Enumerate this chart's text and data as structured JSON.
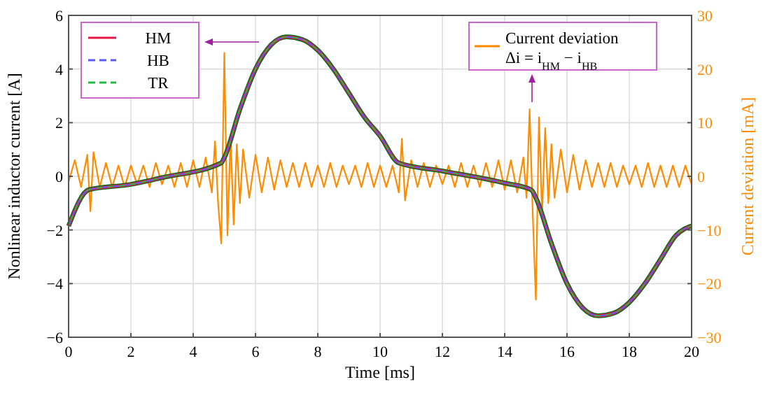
{
  "chart_data": {
    "type": "line",
    "xlabel": "Time [ms]",
    "ylabel": "Nonlinear inductor current [A]",
    "y2label": "Current deviation [mA]",
    "xlim": [
      0,
      20
    ],
    "xticks": [
      0,
      2,
      4,
      6,
      8,
      10,
      12,
      14,
      16,
      18,
      20
    ],
    "ylim": [
      -6,
      6
    ],
    "yticks": [
      -6,
      -4,
      -2,
      0,
      2,
      4,
      6
    ],
    "y2lim": [
      -30,
      30
    ],
    "y2ticks": [
      -30,
      -20,
      -10,
      0,
      10,
      20,
      30
    ],
    "grid": true,
    "legend": "top left",
    "series": [
      {
        "name": "HM",
        "color": "#e8174a",
        "line_style": "solid",
        "x": [
          0,
          0.65,
          2,
          3,
          4.9,
          5,
          5.5,
          6,
          6.5,
          7,
          7.5,
          8,
          8.5,
          9,
          9.5,
          10,
          10.6,
          12,
          14,
          14.85,
          15,
          15.5,
          16,
          16.5,
          17,
          17.5,
          18,
          18.5,
          19,
          19.5,
          20
        ],
        "values": [
          -1.85,
          -0.5,
          -0.3,
          -0.05,
          0.5,
          0.7,
          2.5,
          4,
          4.9,
          5.2,
          5.1,
          4.7,
          4,
          3.1,
          2.2,
          1.5,
          0.5,
          0.2,
          -0.25,
          -0.5,
          -0.8,
          -2.5,
          -4,
          -4.9,
          -5.2,
          -5.1,
          -4.7,
          -4,
          -3.1,
          -2.2,
          -1.85
        ]
      },
      {
        "color": "#0a6b1f",
        "line_style": "solid",
        "x": [
          0,
          0.65,
          2,
          3,
          4.9,
          5,
          5.5,
          6,
          6.5,
          7,
          7.5,
          8,
          8.5,
          9,
          9.5,
          10,
          10.6,
          12,
          14,
          14.85,
          15,
          15.5,
          16,
          16.5,
          17,
          17.5,
          18,
          18.5,
          19,
          19.5,
          20
        ],
        "values": [
          -1.85,
          -0.5,
          -0.3,
          -0.05,
          0.5,
          0.7,
          2.5,
          4,
          4.9,
          5.2,
          5.1,
          4.7,
          4,
          3.1,
          2.2,
          1.5,
          0.5,
          0.2,
          -0.25,
          -0.5,
          -0.8,
          -2.5,
          -4,
          -4.9,
          -5.2,
          -5.1,
          -4.7,
          -4,
          -3.1,
          -2.2,
          -1.85
        ]
      },
      {
        "name": "HB",
        "color": "#5b5bff",
        "line_style": "dashed",
        "x": [
          0,
          0.65,
          2,
          3,
          4.9,
          5,
          5.5,
          6,
          6.5,
          7,
          7.5,
          8,
          8.5,
          9,
          9.5,
          10,
          10.6,
          12,
          14,
          14.85,
          15,
          15.5,
          16,
          16.5,
          17,
          17.5,
          18,
          18.5,
          19,
          19.5,
          20
        ],
        "values": [
          -1.85,
          -0.5,
          -0.3,
          -0.05,
          0.5,
          0.7,
          2.5,
          4,
          4.9,
          5.2,
          5.1,
          4.7,
          4,
          3.1,
          2.2,
          1.5,
          0.5,
          0.2,
          -0.25,
          -0.5,
          -0.8,
          -2.5,
          -4,
          -4.9,
          -5.2,
          -5.1,
          -4.7,
          -4,
          -3.1,
          -2.2,
          -1.85
        ]
      },
      {
        "name": "TR",
        "color": "#22bb44",
        "line_style": "dashed",
        "x": [
          0,
          0.65,
          2,
          3,
          4.9,
          5,
          5.5,
          6,
          6.5,
          7,
          7.5,
          8,
          8.5,
          9,
          9.5,
          10,
          10.6,
          12,
          14,
          14.85,
          15,
          15.5,
          16,
          16.5,
          17,
          17.5,
          18,
          18.5,
          19,
          19.5,
          20
        ],
        "values": [
          -1.85,
          -0.5,
          -0.3,
          -0.05,
          0.5,
          0.7,
          2.5,
          4,
          4.9,
          5.2,
          5.1,
          4.7,
          4,
          3.1,
          2.2,
          1.5,
          0.5,
          0.2,
          -0.25,
          -0.5,
          -0.8,
          -2.5,
          -4,
          -4.9,
          -5.2,
          -5.1,
          -4.7,
          -4,
          -3.1,
          -2.2,
          -1.85
        ]
      },
      {
        "name": "Current deviation\nΔi = i$_{HM}$ − i$_{HB}$",
        "color": "#ff8c00",
        "line_style": "solid",
        "axis": "y2",
        "x": [
          0,
          0.2,
          0.4,
          0.6,
          0.7,
          0.8,
          1,
          1.2,
          1.4,
          1.6,
          1.8,
          2,
          2.2,
          2.4,
          2.6,
          2.8,
          3,
          3.2,
          3.4,
          3.6,
          3.8,
          4,
          4.2,
          4.4,
          4.6,
          4.7,
          4.8,
          4.9,
          5,
          5.1,
          5.2,
          5.3,
          5.4,
          5.5,
          5.6,
          5.8,
          6,
          6.2,
          6.4,
          6.6,
          6.8,
          7,
          7.2,
          7.4,
          7.6,
          7.8,
          8,
          8.2,
          8.4,
          8.6,
          8.8,
          9,
          9.2,
          9.4,
          9.6,
          9.8,
          10,
          10.2,
          10.4,
          10.6,
          10.7,
          10.8,
          11,
          11.2,
          11.4,
          11.6,
          11.8,
          12,
          12.2,
          12.4,
          12.6,
          12.8,
          13,
          13.2,
          13.4,
          13.6,
          13.8,
          14,
          14.2,
          14.4,
          14.6,
          14.7,
          14.8,
          14.9,
          15,
          15.1,
          15.2,
          15.3,
          15.4,
          15.5,
          15.6,
          15.8,
          16,
          16.2,
          16.4,
          16.6,
          16.8,
          17,
          17.2,
          17.4,
          17.6,
          17.8,
          18,
          18.2,
          18.4,
          18.6,
          18.8,
          19,
          19.2,
          19.4,
          19.6,
          19.8,
          20
        ],
        "values": [
          -1,
          3,
          -2,
          4,
          -6.5,
          4.5,
          -2,
          2.5,
          -2,
          2,
          -2,
          2,
          -1.5,
          2,
          -2,
          2.5,
          -1.5,
          2,
          -2,
          2.5,
          -2,
          3,
          -2,
          3.5,
          -3,
          6.5,
          -5,
          -12.5,
          23,
          -11,
          7.5,
          -9,
          6,
          -5,
          5,
          -4,
          4,
          -3,
          3.5,
          -2.5,
          3,
          -2,
          2.5,
          -2,
          2.5,
          -2,
          2,
          -2,
          2.5,
          -2,
          2,
          -1.5,
          2,
          -2,
          2.5,
          -2,
          2,
          -2,
          2,
          -3,
          7,
          -4.5,
          3,
          -2,
          2.5,
          -2,
          2,
          -1.5,
          2,
          -2,
          2.5,
          -2,
          2,
          -2,
          2.5,
          -2,
          3,
          -2.5,
          3,
          -3,
          3.5,
          -4,
          12.5,
          -7,
          -23,
          11,
          -7,
          9,
          -5,
          6,
          -4,
          5,
          -3,
          4,
          -2.5,
          3,
          -2,
          2.5,
          -2,
          2.5,
          -2,
          2,
          -1.5,
          2,
          -2,
          2.5,
          -2,
          2,
          -2,
          2,
          -2,
          2,
          -1.5
        ]
      }
    ]
  }
}
